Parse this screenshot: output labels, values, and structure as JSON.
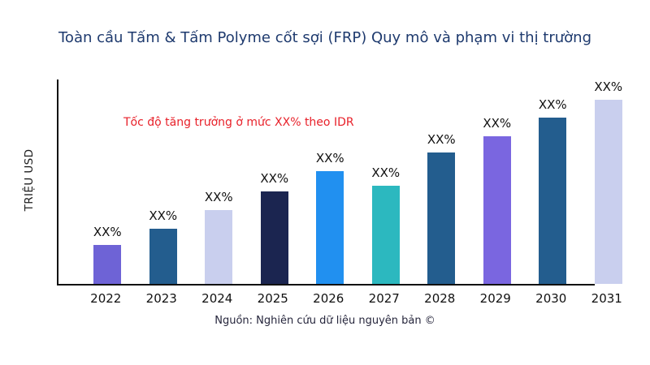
{
  "chart_data": {
    "type": "bar",
    "title": "Toàn cầu Tấm & Tấm Polyme cốt sợi (FRP) Quy mô và phạm vi thị trường",
    "ylabel": "TRIỆU USD",
    "xlabel": "",
    "annotation": "Tốc độ tăng trưởng ở mức XX% theo IDR",
    "source": "Nguồn: Nghiên cứu dữ liệu nguyên bản ©",
    "categories": [
      "2022",
      "2023",
      "2024",
      "2025",
      "2026",
      "2027",
      "2028",
      "2029",
      "2030",
      "2031"
    ],
    "values": [
      21,
      30,
      40,
      50,
      61,
      53,
      71,
      80,
      90,
      100
    ],
    "value_labels": [
      "XX%",
      "XX%",
      "XX%",
      "XX%",
      "XX%",
      "XX%",
      "XX%",
      "XX%",
      "XX%",
      "XX%"
    ],
    "bar_colors": [
      "#6e63d6",
      "#235d8e",
      "#c9cfee",
      "#1b2550",
      "#2190f0",
      "#2cb8bf",
      "#235d8e",
      "#7a66e0",
      "#235d8e",
      "#c9cfee"
    ],
    "ylim": [
      0,
      100
    ],
    "grid": false,
    "legend": false,
    "colors": {
      "title": "#1e3a6e",
      "annotation": "#e8212a",
      "axis": "#111111",
      "labels": "#111111"
    }
  }
}
